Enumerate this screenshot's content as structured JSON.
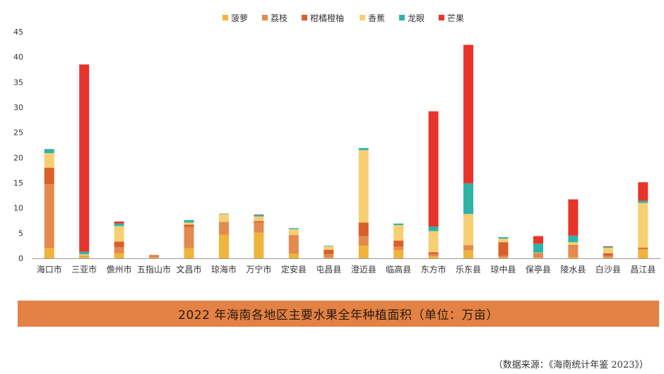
{
  "chart_data": {
    "type": "bar",
    "stacked": true,
    "title": "",
    "xlabel": "",
    "ylabel": "",
    "ylim": [
      0,
      45
    ],
    "yticks": [
      0,
      5,
      10,
      15,
      20,
      25,
      30,
      35,
      40,
      45
    ],
    "grid": false,
    "legend_position": "top",
    "categories": [
      "海口市",
      "三亚市",
      "儋州市",
      "五指山市",
      "文昌市",
      "琼海市",
      "万宁市",
      "定安县",
      "屯昌县",
      "澄迈县",
      "临高县",
      "东方市",
      "乐东县",
      "琼中县",
      "保亭县",
      "陵水县",
      "白沙县",
      "昌江县"
    ],
    "series": [
      {
        "name": "菠萝",
        "color": "#f0b43a",
        "values": [
          2.0,
          0.3,
          1.0,
          0.1,
          2.0,
          4.7,
          5.1,
          0.9,
          0.1,
          2.5,
          1.6,
          0.4,
          1.6,
          0.1,
          0.1,
          0.2,
          0.1,
          1.7
        ]
      },
      {
        "name": "荔枝",
        "color": "#e38a4e",
        "values": [
          12.7,
          0.2,
          1.2,
          0.3,
          4.2,
          2.4,
          2.0,
          3.6,
          0.7,
          1.9,
          0.7,
          0.4,
          1.0,
          0.4,
          0.8,
          2.2,
          0.4,
          0.2
        ]
      },
      {
        "name": "柑橘橙柚",
        "color": "#d95f2b",
        "values": [
          3.3,
          0.0,
          1.1,
          0.2,
          0.5,
          0.1,
          0.3,
          0.1,
          0.9,
          2.7,
          1.2,
          0.4,
          0.0,
          2.7,
          0.1,
          0.2,
          0.5,
          0.2
        ]
      },
      {
        "name": "香蕉",
        "color": "#f6cf72",
        "values": [
          2.9,
          0.3,
          3.1,
          0.1,
          0.4,
          1.6,
          0.9,
          1.2,
          0.7,
          14.4,
          3.1,
          4.2,
          6.2,
          0.7,
          0.1,
          0.6,
          1.1,
          8.9
        ]
      },
      {
        "name": "龙眼",
        "color": "#2fb3a7",
        "values": [
          0.8,
          0.5,
          0.5,
          0.0,
          0.5,
          0.1,
          0.3,
          0.2,
          0.1,
          0.4,
          0.3,
          0.9,
          6.1,
          0.3,
          1.8,
          1.3,
          0.2,
          0.4
        ]
      },
      {
        "name": "芒果",
        "color": "#e8332a",
        "values": [
          0.0,
          37.2,
          0.4,
          0.0,
          0.0,
          0.0,
          0.1,
          0.0,
          0.0,
          0.0,
          0.0,
          22.9,
          27.5,
          0.0,
          1.5,
          7.2,
          0.1,
          3.7
        ]
      }
    ]
  },
  "banner": {
    "text": "2022 年海南各地区主要水果全年种植面积（单位：万亩）"
  },
  "source": {
    "text": "（数据来源：《海南统计年鉴 2023》）"
  }
}
